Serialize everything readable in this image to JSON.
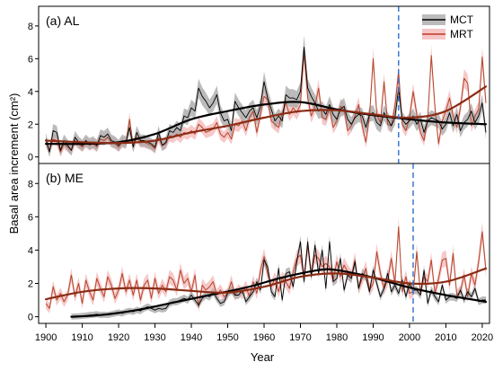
{
  "figure": {
    "ylabel": "Basal area increment  (cm²)",
    "xlabel": "Year",
    "x_ticks": [
      1900,
      1910,
      1920,
      1930,
      1940,
      1950,
      1960,
      1970,
      1980,
      1990,
      2000,
      2010,
      2020
    ]
  },
  "legend": {
    "placement": "top-right",
    "items": [
      {
        "name": "MCT",
        "color": "#000000"
      },
      {
        "name": "MRT",
        "color": "#c0392b"
      }
    ]
  },
  "colors": {
    "mct": "#000000",
    "mct_band": "#aaaaaa",
    "mct_trend": "#000000",
    "mrt": "#b5452b",
    "mrt_band": "#f4b6b6",
    "mrt_trend": "#8b2c15",
    "vline": "#2f6fd1"
  },
  "chart_data": [
    {
      "type": "line",
      "title": "(a) AL",
      "xlim": [
        1898,
        2022
      ],
      "ylim": [
        -0.4,
        9.2
      ],
      "y_ticks": [
        0,
        2,
        4,
        6,
        8
      ],
      "grid": false,
      "vline_year": 1997,
      "mct_x": [
        1900,
        1901,
        1902,
        1903,
        1904,
        1905,
        1906,
        1907,
        1908,
        1909,
        1910,
        1911,
        1912,
        1913,
        1914,
        1915,
        1916,
        1917,
        1918,
        1919,
        1920,
        1921,
        1922,
        1923,
        1924,
        1925,
        1926,
        1927,
        1928,
        1929,
        1930,
        1931,
        1932,
        1933,
        1934,
        1935,
        1936,
        1937,
        1938,
        1939,
        1940,
        1941,
        1942,
        1943,
        1944,
        1945,
        1946,
        1947,
        1948,
        1949,
        1950,
        1951,
        1952,
        1953,
        1954,
        1955,
        1956,
        1957,
        1958,
        1959,
        1960,
        1961,
        1962,
        1963,
        1964,
        1965,
        1966,
        1967,
        1968,
        1969,
        1970,
        1971,
        1972,
        1973,
        1974,
        1975,
        1976,
        1977,
        1978,
        1979,
        1980,
        1981,
        1982,
        1983,
        1984,
        1985,
        1986,
        1987,
        1988,
        1989,
        1990,
        1991,
        1992,
        1993,
        1994,
        1995,
        1996,
        1997,
        1998,
        1999,
        2000,
        2001,
        2002,
        2003,
        2004,
        2005,
        2006,
        2007,
        2008,
        2009,
        2010,
        2011,
        2012,
        2013,
        2014,
        2015,
        2016,
        2017,
        2018,
        2019,
        2020,
        2021
      ],
      "mct_y": [
        1.1,
        0.3,
        1.6,
        1.5,
        0.4,
        1.0,
        0.7,
        0.4,
        1.2,
        0.9,
        0.7,
        1.0,
        0.8,
        0.9,
        0.7,
        1.3,
        1.2,
        1.4,
        1.0,
        0.9,
        0.7,
        1.0,
        0.9,
        1.8,
        0.6,
        1.5,
        1.0,
        1.0,
        0.9,
        0.8,
        0.6,
        1.5,
        0.7,
        0.9,
        1.6,
        1.5,
        1.8,
        1.6,
        2.5,
        2.4,
        3.0,
        2.8,
        4.2,
        3.7,
        3.4,
        3.0,
        3.3,
        3.8,
        2.7,
        2.2,
        2.3,
        1.6,
        3.4,
        3.0,
        2.7,
        2.4,
        2.8,
        3.0,
        2.4,
        3.1,
        4.6,
        3.6,
        2.9,
        2.2,
        2.5,
        2.2,
        3.8,
        3.6,
        3.6,
        3.5,
        4.0,
        6.7,
        4.2,
        3.7,
        3.3,
        2.8,
        2.9,
        2.6,
        3.2,
        2.6,
        2.3,
        2.9,
        3.1,
        2.3,
        2.0,
        2.4,
        2.6,
        2.5,
        1.8,
        2.6,
        2.7,
        2.1,
        1.9,
        2.7,
        2.3,
        1.9,
        2.4,
        4.2,
        2.3,
        2.0,
        2.2,
        2.5,
        2.0,
        2.3,
        1.5,
        2.2,
        2.4,
        2.3,
        2.2,
        1.7,
        2.0,
        2.7,
        1.9,
        2.6,
        1.6,
        2.1,
        2.3,
        2.8,
        2.1,
        2.5,
        3.3,
        1.5
      ],
      "mct_band": 0.5,
      "mrt_y": [
        0.9,
        0.4,
        1.1,
        1.0,
        0.3,
        0.8,
        0.6,
        0.4,
        1.0,
        0.8,
        0.6,
        0.9,
        0.7,
        0.8,
        0.6,
        1.1,
        1.0,
        1.2,
        0.9,
        0.8,
        0.6,
        0.9,
        0.8,
        2.3,
        0.7,
        1.2,
        0.9,
        0.9,
        0.8,
        0.7,
        0.5,
        1.2,
        0.7,
        0.8,
        1.3,
        1.2,
        1.4,
        1.2,
        1.5,
        1.4,
        1.6,
        1.4,
        2.0,
        1.8,
        1.5,
        1.6,
        1.7,
        2.1,
        1.4,
        1.2,
        1.5,
        1.1,
        2.0,
        1.9,
        2.2,
        1.6,
        2.4,
        2.8,
        1.5,
        2.6,
        3.7,
        3.5,
        2.2,
        2.0,
        1.8,
        2.7,
        3.3,
        2.6,
        3.0,
        2.7,
        3.2,
        6.4,
        3.6,
        2.5,
        3.1,
        4.2,
        2.4,
        2.3,
        3.0,
        1.8,
        2.2,
        3.1,
        2.9,
        1.6,
        1.9,
        2.5,
        3.2,
        1.9,
        0.9,
        2.5,
        6.0,
        2.6,
        2.1,
        4.6,
        2.0,
        1.9,
        3.1,
        5.2,
        2.0,
        1.6,
        2.4,
        4.0,
        2.6,
        1.5,
        1.0,
        2.3,
        6.2,
        3.0,
        0.8,
        2.2,
        2.8,
        3.6,
        2.5,
        1.8,
        3.0,
        4.8,
        4.5,
        1.9,
        2.5,
        2.9,
        6.1,
        3.3
      ],
      "mrt_band": 0.45,
      "mct_trend": [
        [
          1900,
          0.8
        ],
        [
          1910,
          0.8
        ],
        [
          1920,
          0.9
        ],
        [
          1930,
          1.4
        ],
        [
          1940,
          2.3
        ],
        [
          1950,
          2.8
        ],
        [
          1960,
          3.2
        ],
        [
          1970,
          3.35
        ],
        [
          1980,
          2.9
        ],
        [
          1990,
          2.55
        ],
        [
          2000,
          2.3
        ],
        [
          2010,
          2.1
        ],
        [
          2021,
          2.0
        ]
      ],
      "mrt_trend": [
        [
          1900,
          1.0
        ],
        [
          1910,
          0.9
        ],
        [
          1920,
          0.85
        ],
        [
          1930,
          1.0
        ],
        [
          1940,
          1.5
        ],
        [
          1950,
          1.9
        ],
        [
          1960,
          2.4
        ],
        [
          1970,
          2.8
        ],
        [
          1980,
          2.85
        ],
        [
          1990,
          2.6
        ],
        [
          2000,
          2.4
        ],
        [
          2010,
          2.8
        ],
        [
          2021,
          4.3
        ]
      ]
    },
    {
      "type": "line",
      "title": "(b) ME",
      "xlim": [
        1898,
        2022
      ],
      "ylim": [
        -0.4,
        9.2
      ],
      "y_ticks": [
        0,
        2,
        4,
        6,
        8
      ],
      "grid": false,
      "vline_year": 2001,
      "mct_x": [
        1907,
        1908,
        1909,
        1910,
        1911,
        1912,
        1913,
        1914,
        1915,
        1916,
        1917,
        1918,
        1919,
        1920,
        1921,
        1922,
        1923,
        1924,
        1925,
        1926,
        1927,
        1928,
        1929,
        1930,
        1931,
        1932,
        1933,
        1934,
        1935,
        1936,
        1937,
        1938,
        1939,
        1940,
        1941,
        1942,
        1943,
        1944,
        1945,
        1946,
        1947,
        1948,
        1949,
        1950,
        1951,
        1952,
        1953,
        1954,
        1955,
        1956,
        1957,
        1958,
        1959,
        1960,
        1961,
        1962,
        1963,
        1964,
        1965,
        1966,
        1967,
        1968,
        1969,
        1970,
        1971,
        1972,
        1973,
        1974,
        1975,
        1976,
        1977,
        1978,
        1979,
        1980,
        1981,
        1982,
        1983,
        1984,
        1985,
        1986,
        1987,
        1988,
        1989,
        1990,
        1991,
        1992,
        1993,
        1994,
        1995,
        1996,
        1997,
        1998,
        1999,
        2000,
        2001,
        2002,
        2003,
        2004,
        2005,
        2006,
        2007,
        2008,
        2009,
        2010,
        2011,
        2012,
        2013,
        2014,
        2015,
        2016,
        2017,
        2018,
        2019,
        2020,
        2021
      ],
      "mct_y": [
        0.0,
        0.02,
        0.03,
        0.05,
        0.07,
        0.1,
        0.12,
        0.15,
        0.1,
        0.12,
        0.1,
        0.15,
        0.2,
        0.25,
        0.2,
        0.3,
        0.35,
        0.3,
        0.4,
        0.35,
        0.5,
        0.6,
        0.5,
        0.4,
        0.5,
        0.45,
        0.5,
        0.8,
        0.9,
        0.9,
        1.0,
        1.1,
        1.0,
        1.3,
        1.0,
        0.7,
        1.1,
        1.3,
        1.2,
        1.5,
        1.1,
        0.8,
        0.9,
        1.4,
        1.6,
        1.3,
        1.3,
        1.6,
        0.9,
        1.2,
        1.5,
        2.1,
        1.6,
        3.4,
        3.0,
        1.5,
        1.2,
        2.9,
        1.0,
        2.6,
        2.7,
        1.8,
        3.3,
        4.5,
        2.1,
        4.5,
        2.4,
        4.3,
        2.6,
        4.0,
        1.7,
        4.5,
        2.1,
        2.3,
        3.5,
        1.6,
        2.5,
        2.3,
        3.3,
        1.7,
        2.6,
        2.4,
        1.5,
        2.8,
        2.0,
        1.2,
        1.7,
        2.6,
        1.5,
        1.9,
        1.4,
        2.2,
        1.2,
        2.0,
        1.6,
        1.6,
        1.3,
        2.8,
        0.8,
        1.6,
        1.2,
        0.9,
        1.9,
        1.0,
        1.2,
        1.2,
        1.1,
        1.6,
        1.0,
        1.5,
        1.2,
        1.7,
        0.9,
        1.0,
        1.0
      ],
      "mct_band": 0.3,
      "mrt_x": [
        1900,
        1901,
        1902,
        1903,
        1904,
        1905,
        1906,
        1907,
        1908,
        1909,
        1910,
        1911,
        1912,
        1913,
        1914,
        1915,
        1916,
        1917,
        1918,
        1919,
        1920,
        1921,
        1922,
        1923,
        1924,
        1925,
        1926,
        1927,
        1928,
        1929,
        1930,
        1931,
        1932,
        1933,
        1934,
        1935,
        1936,
        1937,
        1938,
        1939,
        1940,
        1941,
        1942,
        1943,
        1944,
        1945,
        1946,
        1947,
        1948,
        1949,
        1950,
        1951,
        1952,
        1953,
        1954,
        1955,
        1956,
        1957,
        1958,
        1959,
        1960,
        1961,
        1962,
        1963,
        1964,
        1965,
        1966,
        1967,
        1968,
        1969,
        1970,
        1971,
        1972,
        1973,
        1974,
        1975,
        1976,
        1977,
        1978,
        1979,
        1980,
        1981,
        1982,
        1983,
        1984,
        1985,
        1986,
        1987,
        1988,
        1989,
        1990,
        1991,
        1992,
        1993,
        1994,
        1995,
        1996,
        1997,
        1998,
        1999,
        2000,
        2001,
        2002,
        2003,
        2004,
        2005,
        2006,
        2007,
        2008,
        2009,
        2010,
        2011,
        2012,
        2013,
        2014,
        2015,
        2016,
        2017,
        2018,
        2019,
        2020,
        2021
      ],
      "mrt_y": [
        0.8,
        0.5,
        1.8,
        1.0,
        1.4,
        0.9,
        1.3,
        2.5,
        1.2,
        2.0,
        0.8,
        2.2,
        1.5,
        1.0,
        2.3,
        1.7,
        1.2,
        2.4,
        1.9,
        1.1,
        1.6,
        2.6,
        1.5,
        2.2,
        1.3,
        2.2,
        1.0,
        1.9,
        2.2,
        1.1,
        2.3,
        1.4,
        1.9,
        1.5,
        2.4,
        2.2,
        1.6,
        2.8,
        2.0,
        2.3,
        1.5,
        2.5,
        0.6,
        1.9,
        1.6,
        1.8,
        2.1,
        1.3,
        1.6,
        1.2,
        1.4,
        2.1,
        1.3,
        1.6,
        1.4,
        1.8,
        1.2,
        2.1,
        1.4,
        2.8,
        3.6,
        2.6,
        1.8,
        2.3,
        1.5,
        2.3,
        2.1,
        1.7,
        2.7,
        3.5,
        3.7,
        2.4,
        4.3,
        2.6,
        3.7,
        3.5,
        3.0,
        3.2,
        3.0,
        2.2,
        3.3,
        2.4,
        3.1,
        2.7,
        2.4,
        3.4,
        1.7,
        2.3,
        2.9,
        1.6,
        2.0,
        3.9,
        2.6,
        1.7,
        2.2,
        3.5,
        2.0,
        5.4,
        1.5,
        2.4,
        1.4,
        1.5,
        3.9,
        1.4,
        2.4,
        2.1,
        3.4,
        1.4,
        2.3,
        3.4,
        3.5,
        1.9,
        3.8,
        1.3,
        1.5,
        2.5,
        1.2,
        2.6,
        1.9,
        3.3,
        5.1,
        2.8
      ],
      "mrt_band": 0.45,
      "mct_trend": [
        [
          1907,
          0.0
        ],
        [
          1915,
          0.1
        ],
        [
          1925,
          0.4
        ],
        [
          1935,
          0.85
        ],
        [
          1945,
          1.3
        ],
        [
          1955,
          1.75
        ],
        [
          1965,
          2.35
        ],
        [
          1975,
          2.8
        ],
        [
          1980,
          2.8
        ],
        [
          1990,
          2.35
        ],
        [
          2000,
          1.75
        ],
        [
          2010,
          1.3
        ],
        [
          2021,
          0.9
        ]
      ],
      "mrt_trend": [
        [
          1900,
          1.05
        ],
        [
          1910,
          1.5
        ],
        [
          1920,
          1.7
        ],
        [
          1930,
          1.7
        ],
        [
          1940,
          1.55
        ],
        [
          1950,
          1.45
        ],
        [
          1960,
          1.8
        ],
        [
          1970,
          2.4
        ],
        [
          1980,
          2.6
        ],
        [
          1990,
          2.35
        ],
        [
          2000,
          2.0
        ],
        [
          2010,
          2.1
        ],
        [
          2021,
          2.9
        ]
      ]
    }
  ]
}
